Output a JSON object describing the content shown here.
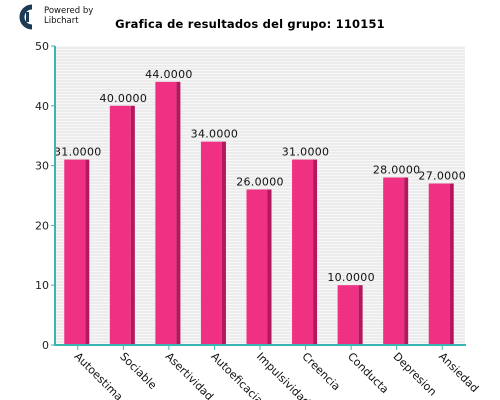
{
  "powered": {
    "line1": "Powered by",
    "line2": "Libchart"
  },
  "chart_data": {
    "type": "bar",
    "title": "Grafica de resultados del grupo: 110151",
    "xlabel": "",
    "ylabel": "",
    "ylim": [
      0,
      50
    ],
    "yticks": [
      "0",
      "10",
      "20",
      "30",
      "40",
      "50"
    ],
    "categories": [
      "Autoestima",
      "Sociable",
      "Asertividad",
      "Autoeficacia",
      "Impulsividad",
      "Creencia",
      "Conducta",
      "Depresion",
      "Ansiedad"
    ],
    "values": [
      31,
      40,
      44,
      34,
      26,
      31,
      10,
      28,
      27
    ],
    "value_labels": [
      "31.0000",
      "40.0000",
      "44.0000",
      "34.0000",
      "26.0000",
      "31.0000",
      "10.0000",
      "28.0000",
      "27.0000"
    ],
    "grid": true,
    "colors": {
      "bar": "#f03082",
      "bar_side": "#b5175e",
      "axis": "#3ab5b0",
      "grid_line": "#e0e0e0"
    }
  }
}
